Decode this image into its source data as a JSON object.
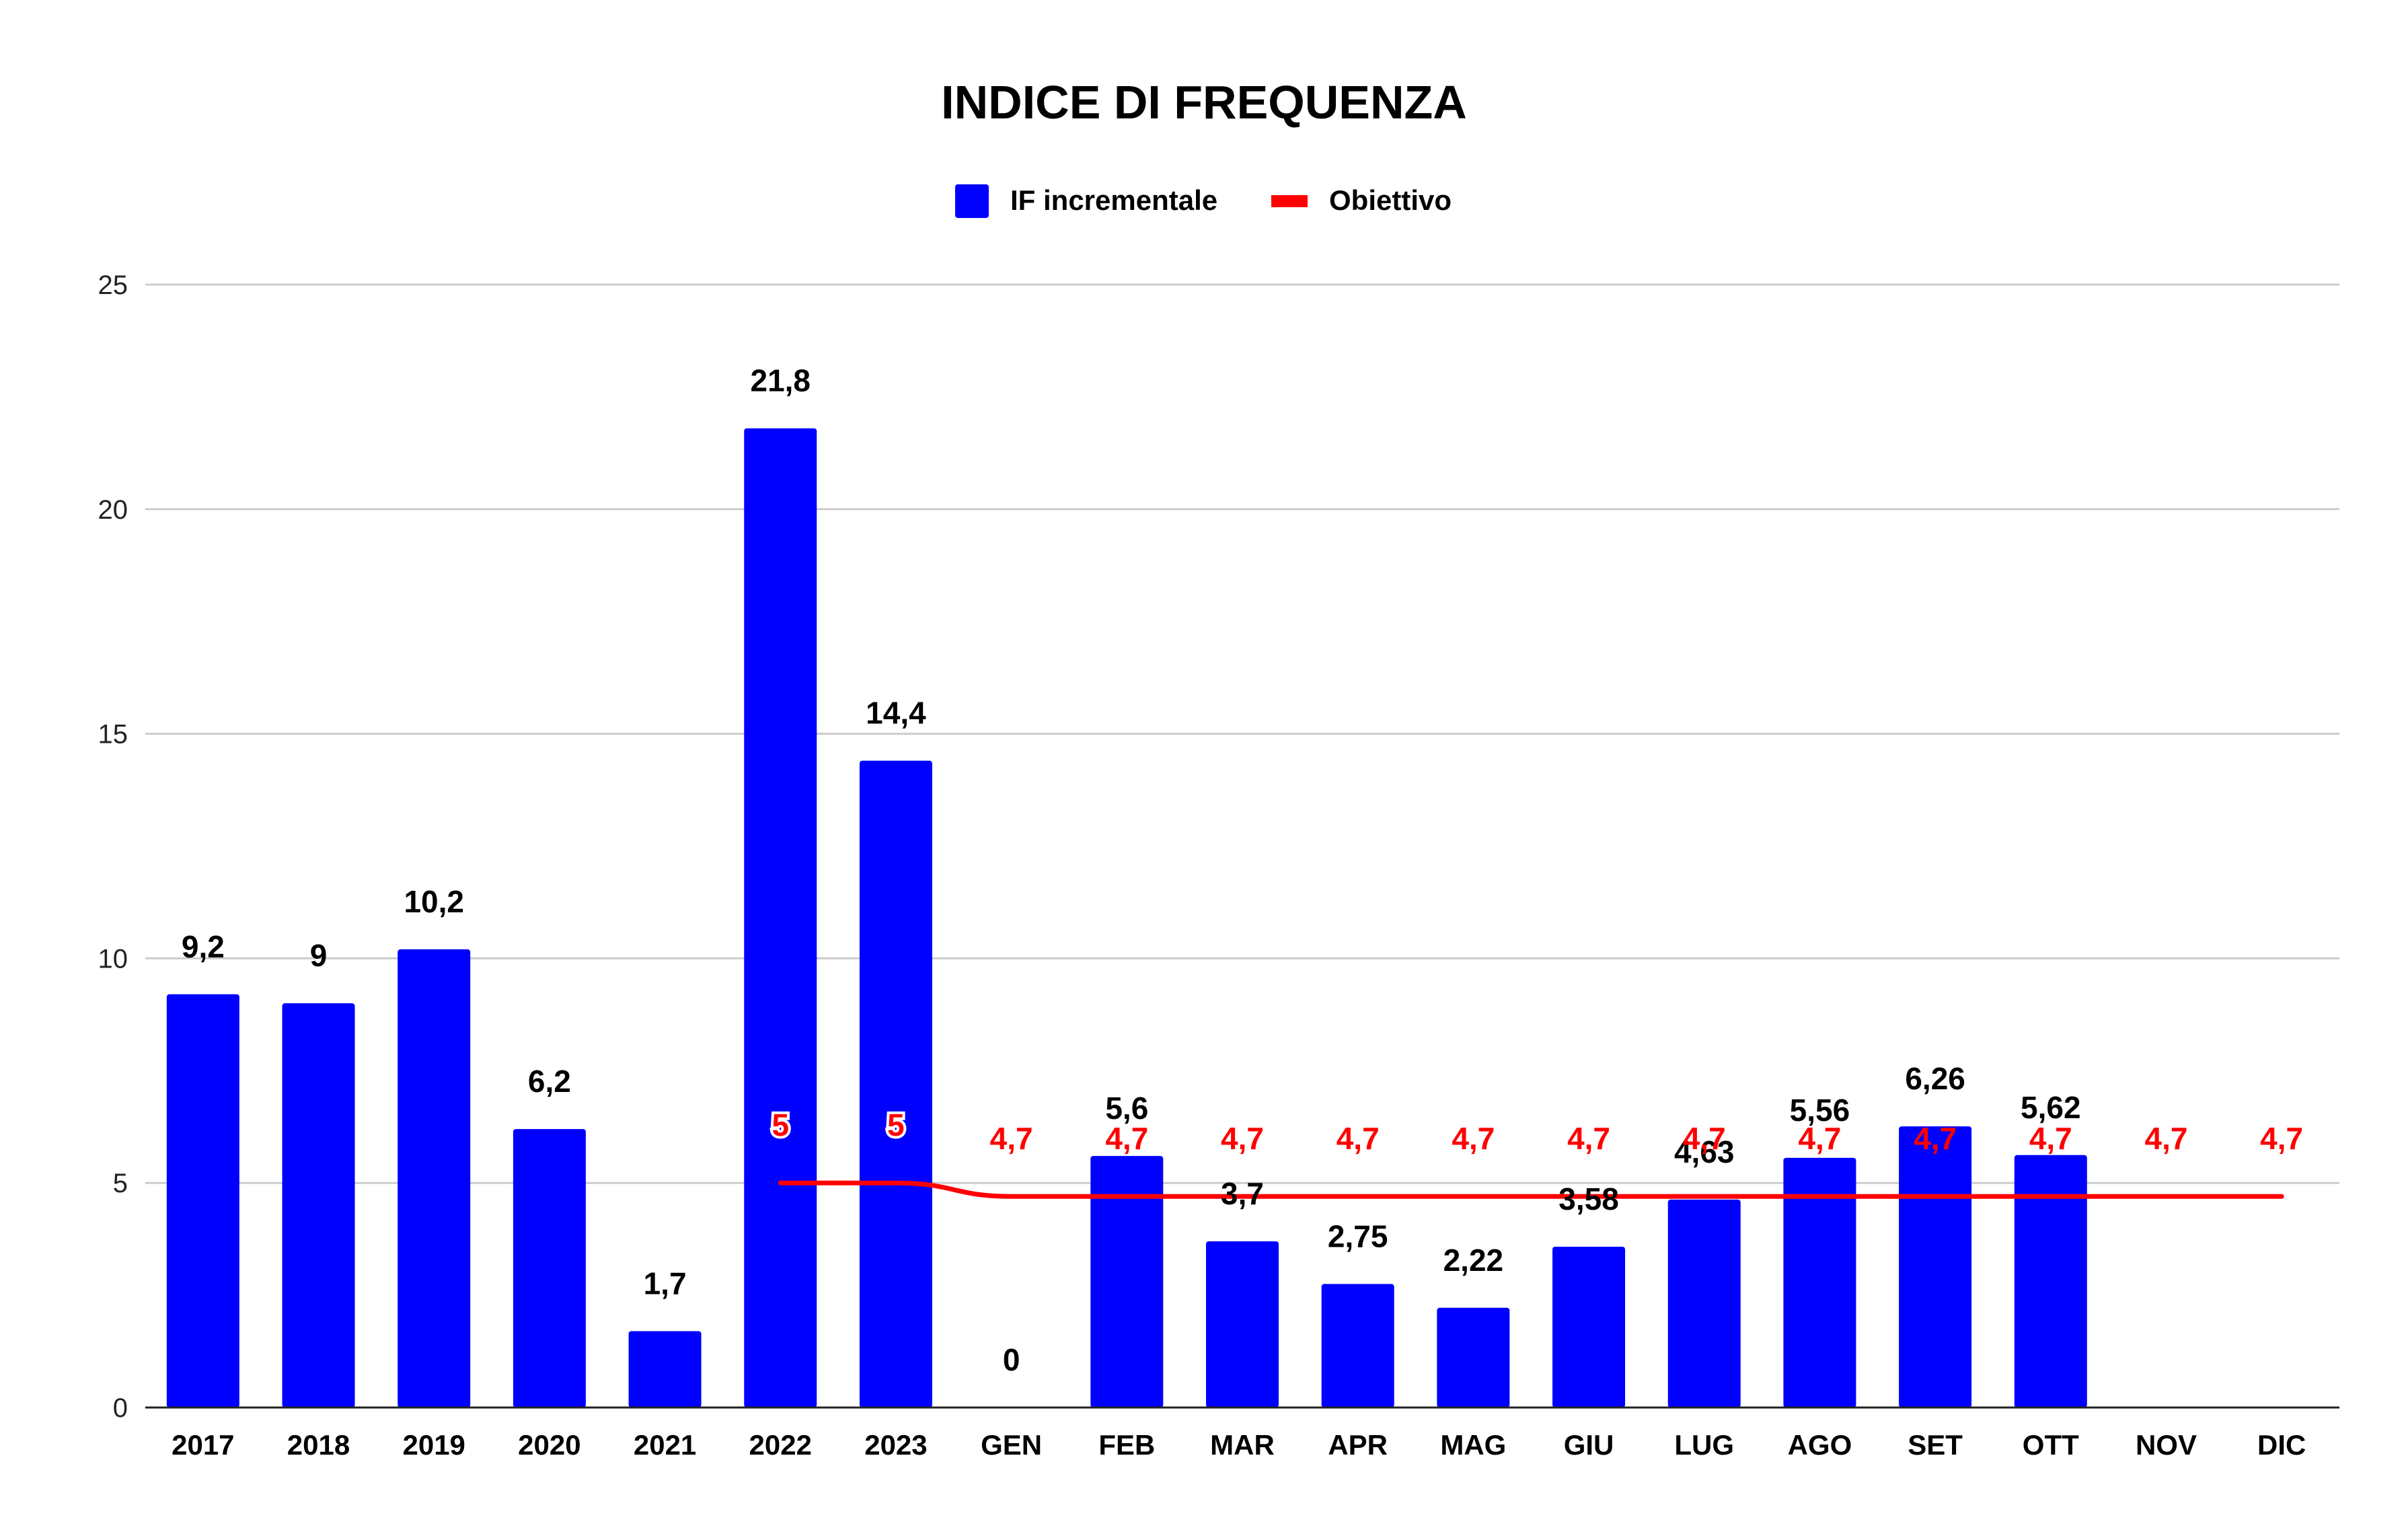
{
  "chart_data": {
    "type": "bar",
    "title": "INDICE DI FREQUENZA",
    "xlabel": "",
    "ylabel": "",
    "ylim": [
      0,
      25
    ],
    "yticks": [
      0,
      5,
      10,
      15,
      20,
      25
    ],
    "grid": true,
    "legend_position": "top",
    "categories": [
      "2017",
      "2018",
      "2019",
      "2020",
      "2021",
      "2022",
      "2023",
      "GEN",
      "FEB",
      "MAR",
      "APR",
      "MAG",
      "GIU",
      "LUG",
      "AGO",
      "SET",
      "OTT",
      "NOV",
      "DIC"
    ],
    "series": [
      {
        "name": "IF incrementale",
        "type": "bar",
        "color": "#0000ff",
        "label_color": "#000000",
        "values": [
          9.2,
          9,
          10.2,
          6.2,
          1.7,
          21.8,
          14.4,
          0,
          5.6,
          3.7,
          2.75,
          2.22,
          3.58,
          4.63,
          5.56,
          6.26,
          5.62,
          null,
          null
        ],
        "labels": [
          "9,2",
          "9",
          "10,2",
          "6,2",
          "1,7",
          "21,8",
          "14,4",
          "0",
          "5,6",
          "3,7",
          "2,75",
          "2,22",
          "3,58",
          "4,63",
          "5,56",
          "6,26",
          "5,62",
          "",
          ""
        ]
      },
      {
        "name": "Obiettivo",
        "type": "line",
        "color": "#ff0000",
        "label_color": "#ff0000",
        "values": [
          null,
          null,
          null,
          null,
          null,
          5,
          5,
          4.7,
          4.7,
          4.7,
          4.7,
          4.7,
          4.7,
          4.7,
          4.7,
          4.7,
          4.7,
          4.7,
          4.7
        ],
        "labels": [
          "",
          "",
          "",
          "",
          "",
          "5",
          "5",
          "4,7",
          "4,7",
          "4,7",
          "4,7",
          "4,7",
          "4,7",
          "4,7",
          "4,7",
          "4,7",
          "4,7",
          "4,7",
          "4,7"
        ]
      }
    ]
  }
}
